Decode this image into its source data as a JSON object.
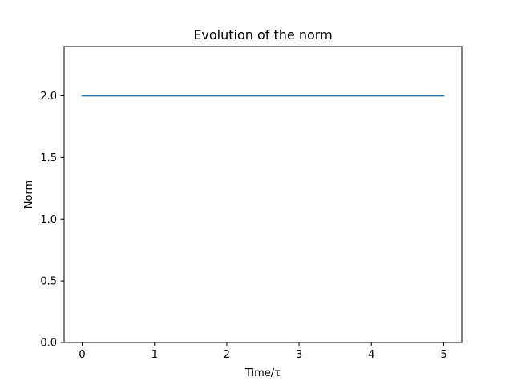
{
  "chart_data": {
    "type": "line",
    "title": "Evolution of the norm",
    "xlabel": "Time/τ",
    "ylabel": "Norm",
    "xlim": [
      -0.25,
      5.25
    ],
    "ylim": [
      0.0,
      2.4
    ],
    "xticks": [
      0,
      1,
      2,
      3,
      4,
      5
    ],
    "xtick_labels": [
      "0",
      "1",
      "2",
      "3",
      "4",
      "5"
    ],
    "yticks": [
      0.0,
      0.5,
      1.0,
      1.5,
      2.0
    ],
    "ytick_labels": [
      "0.0",
      "0.5",
      "1.0",
      "1.5",
      "2.0"
    ],
    "grid": false,
    "series": [
      {
        "color": "#1f77b4",
        "x": [
          0,
          1,
          2,
          3,
          4,
          5
        ],
        "y": [
          2.0,
          2.0,
          2.0,
          2.0,
          2.0,
          2.0
        ]
      }
    ]
  }
}
